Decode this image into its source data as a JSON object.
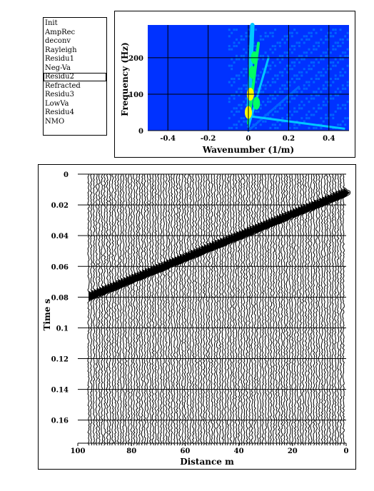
{
  "process_list": {
    "items": [
      "Init",
      "AmpRec",
      "deconv",
      "Rayleigh",
      "Residu1",
      "Neg-Va",
      "Residu2",
      "Refracted",
      "Residu3",
      "LowVa",
      "Residu4",
      "NMO"
    ],
    "selected": "Residu2"
  },
  "chart_data": [
    {
      "type": "heatmap",
      "title": "",
      "xlabel": "Wavenumber (1/m)",
      "ylabel": "Frequency (Hz)",
      "xlim": [
        -0.5,
        0.5
      ],
      "ylim": [
        0,
        290
      ],
      "x_ticks": [
        "-0.4",
        "-0.2",
        "0",
        "0.2",
        "0.4"
      ],
      "y_ticks": [
        "0",
        "100",
        "200"
      ],
      "grid": true,
      "colors": {
        "background": "#0032ff",
        "low": "#0064ff",
        "mid": "#00c8ff",
        "high": "#ffff00",
        "peak": "#00ff64"
      }
    },
    {
      "type": "line",
      "title": "",
      "xlabel": "Distance m",
      "ylabel": "Time s",
      "xlim": [
        100,
        0
      ],
      "ylim": [
        0,
        0.175
      ],
      "x_ticks": [
        "100",
        "80",
        "60",
        "40",
        "20",
        "0"
      ],
      "y_ticks": [
        "0",
        "0.02",
        "0.04",
        "0.06",
        "0.08",
        "0.1",
        "0.12",
        "0.14",
        "0.16"
      ],
      "grid": true,
      "trace_count": 96,
      "first_arrival": {
        "near_offset_time": 0.01,
        "far_offset_time": 0.078
      }
    }
  ]
}
